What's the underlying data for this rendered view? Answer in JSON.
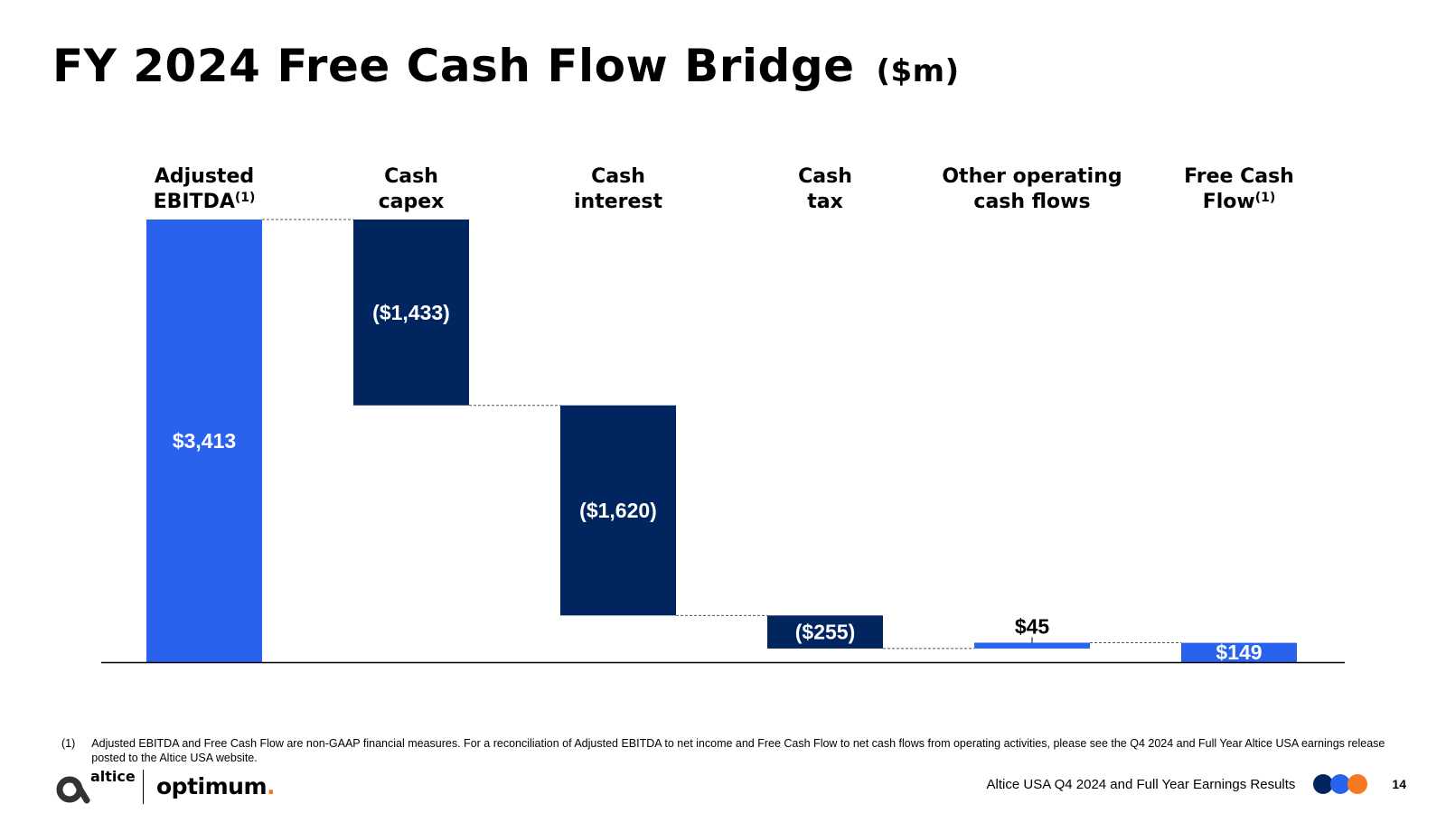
{
  "title": {
    "main": "FY 2024 Free Cash Flow Bridge",
    "unit": "($m)"
  },
  "chart_data": {
    "type": "bar",
    "subtype": "waterfall",
    "categories": [
      "Adjusted EBITDA(1)",
      "Cash capex",
      "Cash interest",
      "Cash tax",
      "Other operating cash flows",
      "Free Cash Flow(1)"
    ],
    "category_label_lines": [
      [
        {
          "text": "Adjusted"
        },
        {
          "text": "EBITDA",
          "sup": "(1)"
        }
      ],
      [
        {
          "text": "Cash"
        },
        {
          "text": "capex"
        }
      ],
      [
        {
          "text": "Cash"
        },
        {
          "text": "interest"
        }
      ],
      [
        {
          "text": "Cash"
        },
        {
          "text": "tax"
        }
      ],
      [
        {
          "text": "Other operating"
        },
        {
          "text": "cash flows"
        }
      ],
      [
        {
          "text": "Free Cash"
        },
        {
          "text": "Flow",
          "sup": "(1)"
        }
      ]
    ],
    "values": [
      3413,
      -1433,
      -1620,
      -255,
      45,
      149
    ],
    "bar_kinds": [
      "total",
      "change",
      "change",
      "change",
      "change",
      "total"
    ],
    "data_labels": [
      "$3,413",
      "($1,433)",
      "($1,620)",
      "($255)",
      "$45",
      "$149"
    ],
    "colors": {
      "total": "#2962EC",
      "negative": "#00255F",
      "positive": "#2962EC",
      "connector": "#555555",
      "axis": "#000000"
    },
    "ylim": [
      0,
      3413
    ],
    "grid": false,
    "legend": "none",
    "connectors": true
  },
  "footnote": {
    "marker": "(1)",
    "text": "Adjusted EBITDA and Free Cash Flow are non-GAAP financial measures. For a reconciliation of Adjusted EBITDA to net income and Free Cash Flow to net cash flows from operating activities, please see the Q4 2024 and Full Year Altice USA earnings release posted to the Altice USA website."
  },
  "footer": {
    "brand_altice": "altice",
    "brand_optimum": "optimum",
    "brand_optimum_dot": ".",
    "deck_title": "Altice USA Q4 2024 and Full Year Earnings Results",
    "page_number": "14",
    "dot_colors": [
      "#00255F",
      "#2962EC",
      "#F47920"
    ],
    "brand_orange": "#F47920"
  }
}
